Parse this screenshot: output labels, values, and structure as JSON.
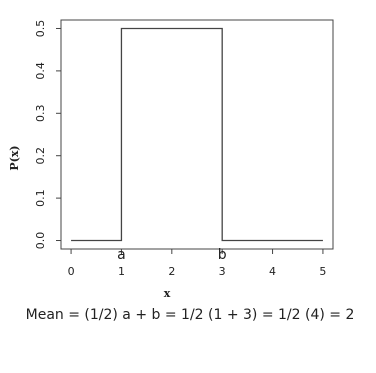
{
  "chart_data": {
    "type": "line",
    "xlabel": "x",
    "ylabel": "P(x)",
    "series": [
      {
        "color": "#444444",
        "x": [
          0,
          1,
          1,
          3,
          3,
          5
        ],
        "values": [
          0,
          0,
          0.5,
          0.5,
          0,
          0
        ]
      }
    ],
    "xlim": [
      -0.2,
      5.2
    ],
    "xticks": [
      0,
      1,
      2,
      3,
      4,
      5
    ],
    "ylim": [
      -0.02,
      0.52
    ],
    "yticks": [
      {
        "value": 0,
        "label": "0.0"
      },
      0.1,
      0.2,
      0.3,
      0.4,
      0.5
    ],
    "annotations": [
      {
        "text": "a",
        "x": 1,
        "color": "#1a9ad6"
      },
      {
        "text": "b",
        "x": 3,
        "color": "#1a9ad6"
      }
    ],
    "formula": "Mean = (1/2) a + b = 1/2 (1 + 3) = 1/2 (4) = 2",
    "formula_color": "#1a9ad6"
  }
}
